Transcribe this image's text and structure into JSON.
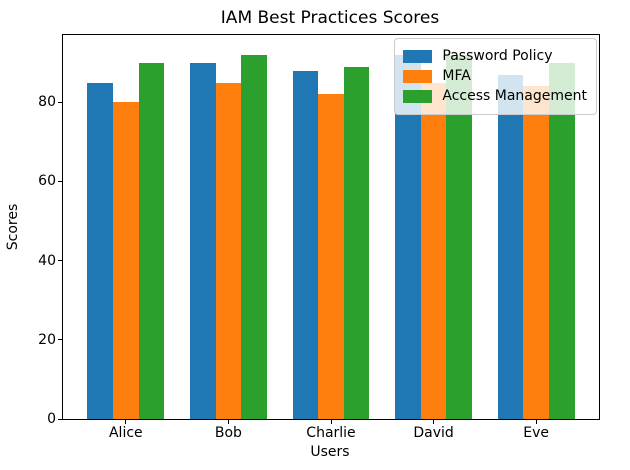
{
  "chart_data": {
    "type": "bar",
    "title": "IAM Best Practices Scores",
    "xlabel": "Users",
    "ylabel": "Scores",
    "categories": [
      "Alice",
      "Bob",
      "Charlie",
      "David",
      "Eve"
    ],
    "series": [
      {
        "name": "Password Policy",
        "color": "#1f77b4",
        "values": [
          85,
          90,
          88,
          92,
          87
        ]
      },
      {
        "name": "MFA",
        "color": "#ff7f0e",
        "values": [
          80,
          85,
          82,
          85,
          84
        ]
      },
      {
        "name": "Access Management",
        "color": "#2ca02c",
        "values": [
          90,
          92,
          89,
          92,
          90
        ]
      }
    ],
    "yticks": [
      0,
      20,
      40,
      60,
      80
    ],
    "ylim": [
      0,
      97
    ],
    "legend_position": "upper right",
    "grid": false,
    "background_color": "#ffffff",
    "axis_color": "#000000"
  }
}
